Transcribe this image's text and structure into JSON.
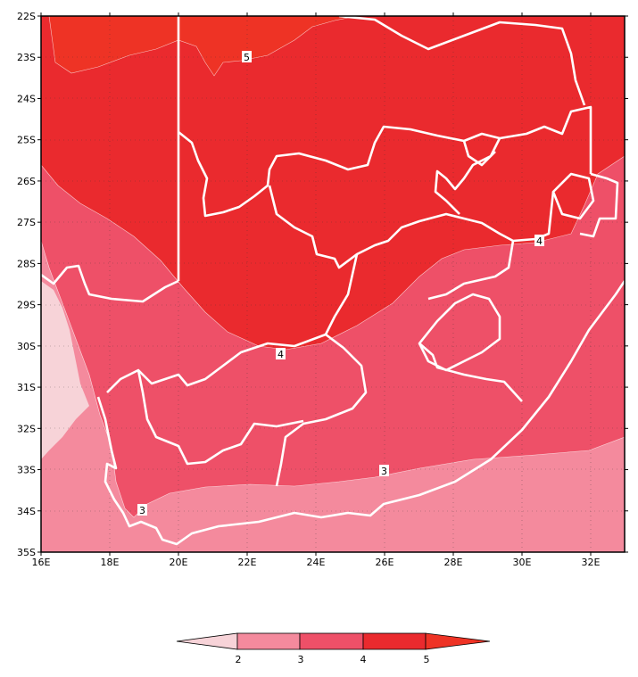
{
  "map": {
    "lon_labels": [
      "16E",
      "18E",
      "20E",
      "22E",
      "24E",
      "26E",
      "28E",
      "30E",
      "32E"
    ],
    "lat_labels": [
      "22S",
      "23S",
      "24S",
      "25S",
      "26S",
      "27S",
      "28S",
      "29S",
      "30S",
      "31S",
      "32S",
      "33S",
      "34S",
      "35S"
    ],
    "contour_labels": [
      "5",
      "4",
      "4",
      "3",
      "3"
    ]
  },
  "legend": {
    "labels": [
      "2",
      "3",
      "4",
      "5"
    ],
    "colors": [
      "#f7d3d8",
      "#f48a9d",
      "#ee5068",
      "#ea2a2e"
    ]
  },
  "fill_colors": {
    "lt2": "#f7d3d8",
    "b23": "#f48a9d",
    "b34": "#ee5068",
    "b45": "#ea2a2e",
    "gt5": "#ee3325"
  }
}
